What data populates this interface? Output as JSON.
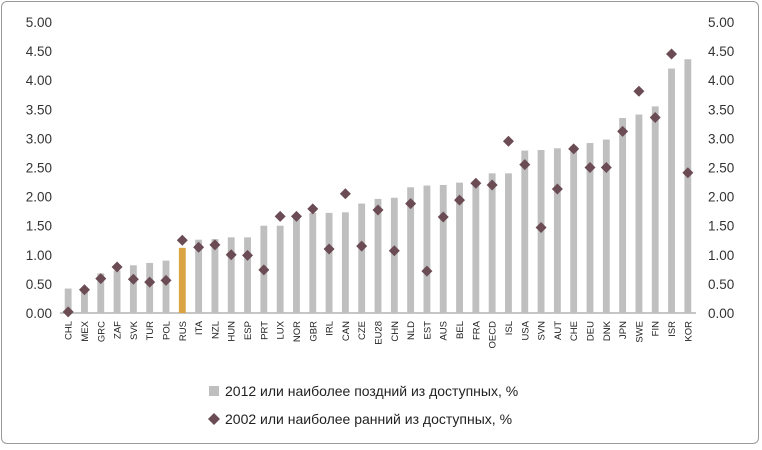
{
  "chart_data": {
    "type": "bar",
    "categories": [
      "CHL",
      "MEX",
      "GRC",
      "ZAF",
      "SVK",
      "TUR",
      "POL",
      "RUS",
      "ITA",
      "NZL",
      "HUN",
      "ESP",
      "PRT",
      "LUX",
      "NOR",
      "GBR",
      "IRL",
      "CAN",
      "CZE",
      "EU28",
      "CHN",
      "NLD",
      "EST",
      "AUS",
      "BEL",
      "FRA",
      "OECD",
      "ISL",
      "USA",
      "SVN",
      "AUT",
      "CHE",
      "DEU",
      "DNK",
      "JPN",
      "SWE",
      "FIN",
      "ISR",
      "KOR"
    ],
    "series": [
      {
        "name": "2012 или наиболее поздний из доступных, %",
        "type": "bar",
        "color": "#bfbfbf",
        "values": [
          0.42,
          0.43,
          0.68,
          0.73,
          0.82,
          0.86,
          0.9,
          1.12,
          1.26,
          1.27,
          1.3,
          1.3,
          1.5,
          1.5,
          1.65,
          1.72,
          1.72,
          1.73,
          1.88,
          1.96,
          1.98,
          2.16,
          2.19,
          2.2,
          2.24,
          2.26,
          2.4,
          2.4,
          2.79,
          2.8,
          2.83,
          2.87,
          2.92,
          2.98,
          3.35,
          3.41,
          3.55,
          4.2,
          4.36
        ]
      },
      {
        "name": "2002 или наиболее ранний из доступных, %",
        "type": "scatter",
        "marker": "diamond",
        "color": "#6b4c55",
        "values": [
          0.02,
          0.4,
          0.59,
          0.79,
          0.58,
          0.53,
          0.56,
          1.25,
          1.13,
          1.17,
          1.0,
          0.99,
          0.74,
          1.66,
          1.66,
          1.79,
          1.1,
          2.05,
          1.15,
          1.77,
          1.07,
          1.88,
          0.72,
          1.65,
          1.94,
          2.23,
          2.2,
          2.95,
          2.55,
          1.47,
          2.13,
          2.82,
          2.5,
          2.5,
          3.12,
          3.81,
          3.36,
          4.45,
          2.41
        ]
      }
    ],
    "highlight": {
      "category": "RUS",
      "color": "#d9a441"
    },
    "ylim": [
      0,
      5
    ],
    "yticks": [
      "0.00",
      "0.50",
      "1.00",
      "1.50",
      "2.00",
      "2.50",
      "3.00",
      "3.50",
      "4.00",
      "4.50",
      "5.00"
    ],
    "secondary_axis": true,
    "grid": false,
    "legend_position": "bottom"
  }
}
